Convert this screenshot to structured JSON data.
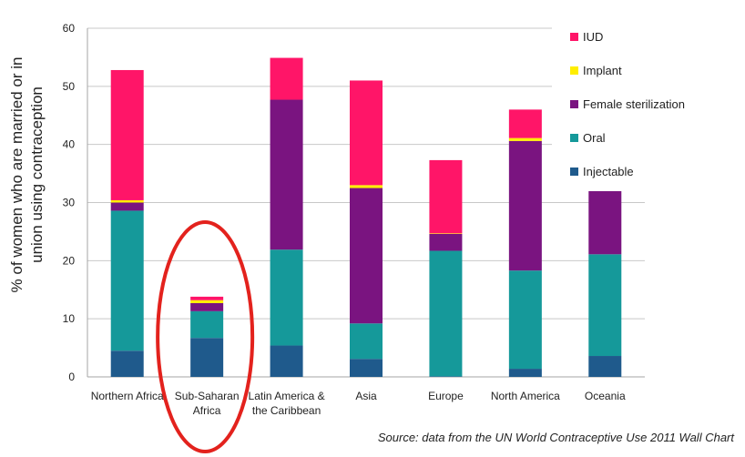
{
  "chart_data": {
    "type": "bar",
    "stacked": true,
    "title": "",
    "ylabel": [
      "% of women who are married or in",
      "union using contraception"
    ],
    "ylim": [
      0,
      60
    ],
    "yticks": [
      0,
      10,
      20,
      30,
      40,
      50,
      60
    ],
    "grid": true,
    "legend_position": "top-right",
    "categories": [
      [
        "Northern Africa"
      ],
      [
        "Sub-Saharan",
        "Africa"
      ],
      [
        "Latin America &",
        "the Caribbean"
      ],
      [
        "Asia"
      ],
      [
        "Europe"
      ],
      [
        "North America"
      ],
      [
        "Oceania"
      ]
    ],
    "highlighted_category": 1,
    "highlight_color": "#e3221d",
    "series": [
      {
        "name": "Injectable",
        "color": "#1f5a8c",
        "values": [
          4.5,
          6.7,
          5.4,
          3.1,
          0.1,
          1.4,
          3.6
        ]
      },
      {
        "name": "Oral",
        "color": "#15999a",
        "values": [
          24.1,
          4.6,
          16.5,
          6.1,
          21.6,
          16.9,
          17.5
        ]
      },
      {
        "name": "Female sterilization",
        "color": "#7a1480",
        "values": [
          1.4,
          1.4,
          25.8,
          23.3,
          2.9,
          22.3,
          11.1
        ]
      },
      {
        "name": "Implant",
        "color": "#ffee00",
        "values": [
          0.4,
          0.5,
          0.0,
          0.5,
          0.1,
          0.5,
          0.0
        ]
      },
      {
        "name": "IUD",
        "color": "#ff1568",
        "values": [
          22.4,
          0.6,
          7.2,
          18.0,
          12.6,
          4.9,
          0.0
        ]
      }
    ],
    "legend_order": [
      "IUD",
      "Implant",
      "Female sterilization",
      "Oral",
      "Injectable"
    ]
  },
  "source_note": "Source: data from the UN World Contraceptive Use 2011 Wall Chart"
}
